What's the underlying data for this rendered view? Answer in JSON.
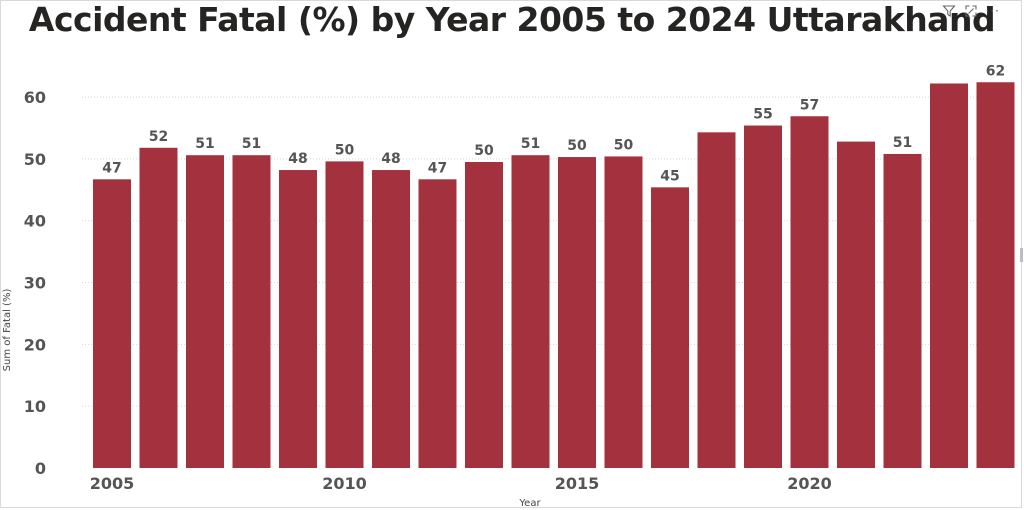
{
  "chart_data": {
    "type": "bar",
    "title": "Accident Fatal (%) by Year 2005 to 2024 Uttarakhand",
    "xlabel": "Year",
    "ylabel": "Sum of Fatal (%)",
    "categories": [
      2005,
      2006,
      2007,
      2008,
      2009,
      2010,
      2011,
      2012,
      2013,
      2014,
      2015,
      2016,
      2017,
      2018,
      2019,
      2020,
      2021,
      2022,
      2023,
      2024
    ],
    "values": [
      46.7,
      51.8,
      50.6,
      50.6,
      48.2,
      49.6,
      48.2,
      46.7,
      49.5,
      50.6,
      50.3,
      50.4,
      45.4,
      54.3,
      55.4,
      56.9,
      52.8,
      50.8,
      62.2,
      62.4
    ],
    "data_labels": [
      "47",
      "52",
      "51",
      "51",
      "48",
      "50",
      "48",
      "47",
      "50",
      "51",
      "50",
      "50",
      "45",
      "",
      "55",
      "57",
      "",
      "51",
      "",
      "62"
    ],
    "x_ticks": [
      "2005",
      "2010",
      "2015",
      "2020"
    ],
    "y_ticks": [
      "0",
      "10",
      "20",
      "30",
      "40",
      "50",
      "60"
    ],
    "ylim": [
      0,
      66
    ],
    "grid": true,
    "bar_color": "#a4323e",
    "legend": "none"
  },
  "toolbar": {
    "icons": [
      "filter-icon",
      "focus-mode-icon",
      "more-options-icon"
    ],
    "more_label": "···"
  }
}
